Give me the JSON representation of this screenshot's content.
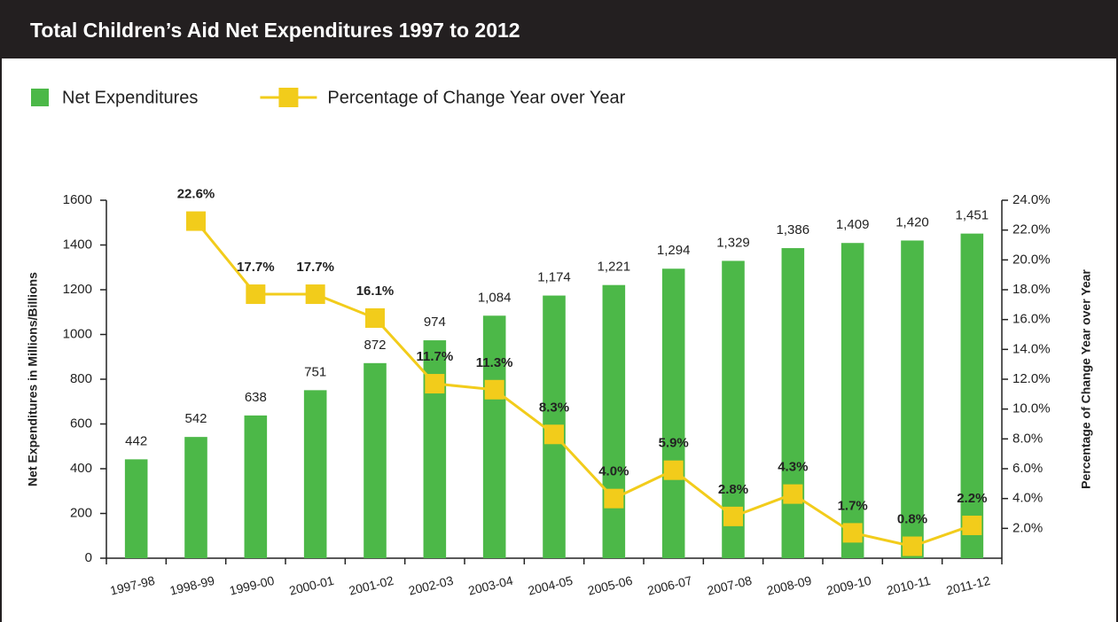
{
  "chart_data": {
    "type": "bar",
    "title": "Total Children’s Aid Net Expenditures 1997 to 2012",
    "ylabel": "Net Expenditures in Millions/Billions",
    "y2label": "Percentage of Change Year over Year",
    "categories": [
      "1997-98",
      "1998-99",
      "1999-00",
      "2000-01",
      "2001-02",
      "2002-03",
      "2003-04",
      "2004-05",
      "2005-06",
      "2006-07",
      "2007-08",
      "2008-09",
      "2009-10",
      "2010-11",
      "2011-12"
    ],
    "series": [
      {
        "name": "Net Expenditures",
        "type": "bar",
        "color": "#4cb848",
        "values": [
          442,
          542,
          638,
          751,
          872,
          974,
          1084,
          1174,
          1221,
          1294,
          1329,
          1386,
          1409,
          1420,
          1451
        ],
        "value_labels": [
          "442",
          "542",
          "638",
          "751",
          "872",
          "974",
          "1,084",
          "1,174",
          "1,221",
          "1,294",
          "1,329",
          "1,386",
          "1,409",
          "1,420",
          "1,451"
        ]
      },
      {
        "name": "Percentage of Change Year over Year",
        "type": "line",
        "axis": "y2",
        "color": "#f2cc1b",
        "values": [
          null,
          22.6,
          17.7,
          17.7,
          16.1,
          11.7,
          11.3,
          8.3,
          4.0,
          5.9,
          2.8,
          4.3,
          1.7,
          0.8,
          2.2
        ],
        "value_labels": [
          null,
          "22.6%",
          "17.7%",
          "17.7%",
          "16.1%",
          "11.7%",
          "11.3%",
          "8.3%",
          "4.0%",
          "5.9%",
          "2.8%",
          "4.3%",
          "1.7%",
          "0.8%",
          "2.2%"
        ]
      }
    ],
    "ylim": [
      0,
      1600
    ],
    "yticks": [
      0,
      200,
      400,
      600,
      800,
      1000,
      1200,
      1400,
      1600
    ],
    "y2lim": [
      0,
      24
    ],
    "y2ticks": [
      {
        "value": 2,
        "label": "2.0%"
      },
      {
        "value": 4,
        "label": "4.0%"
      },
      {
        "value": 6,
        "label": "6.0%"
      },
      {
        "value": 8,
        "label": "8.0%"
      },
      {
        "value": 10,
        "label": "10.0%"
      },
      {
        "value": 12,
        "label": "12.0%"
      },
      {
        "value": 14,
        "label": "14.0%"
      },
      {
        "value": 16,
        "label": "16.0%"
      },
      {
        "value": 18,
        "label": "18.0%"
      },
      {
        "value": 20,
        "label": "20.0%"
      },
      {
        "value": 22,
        "label": "22.0%"
      },
      {
        "value": 24,
        "label": "24.0%"
      }
    ],
    "legend": "top-left"
  }
}
